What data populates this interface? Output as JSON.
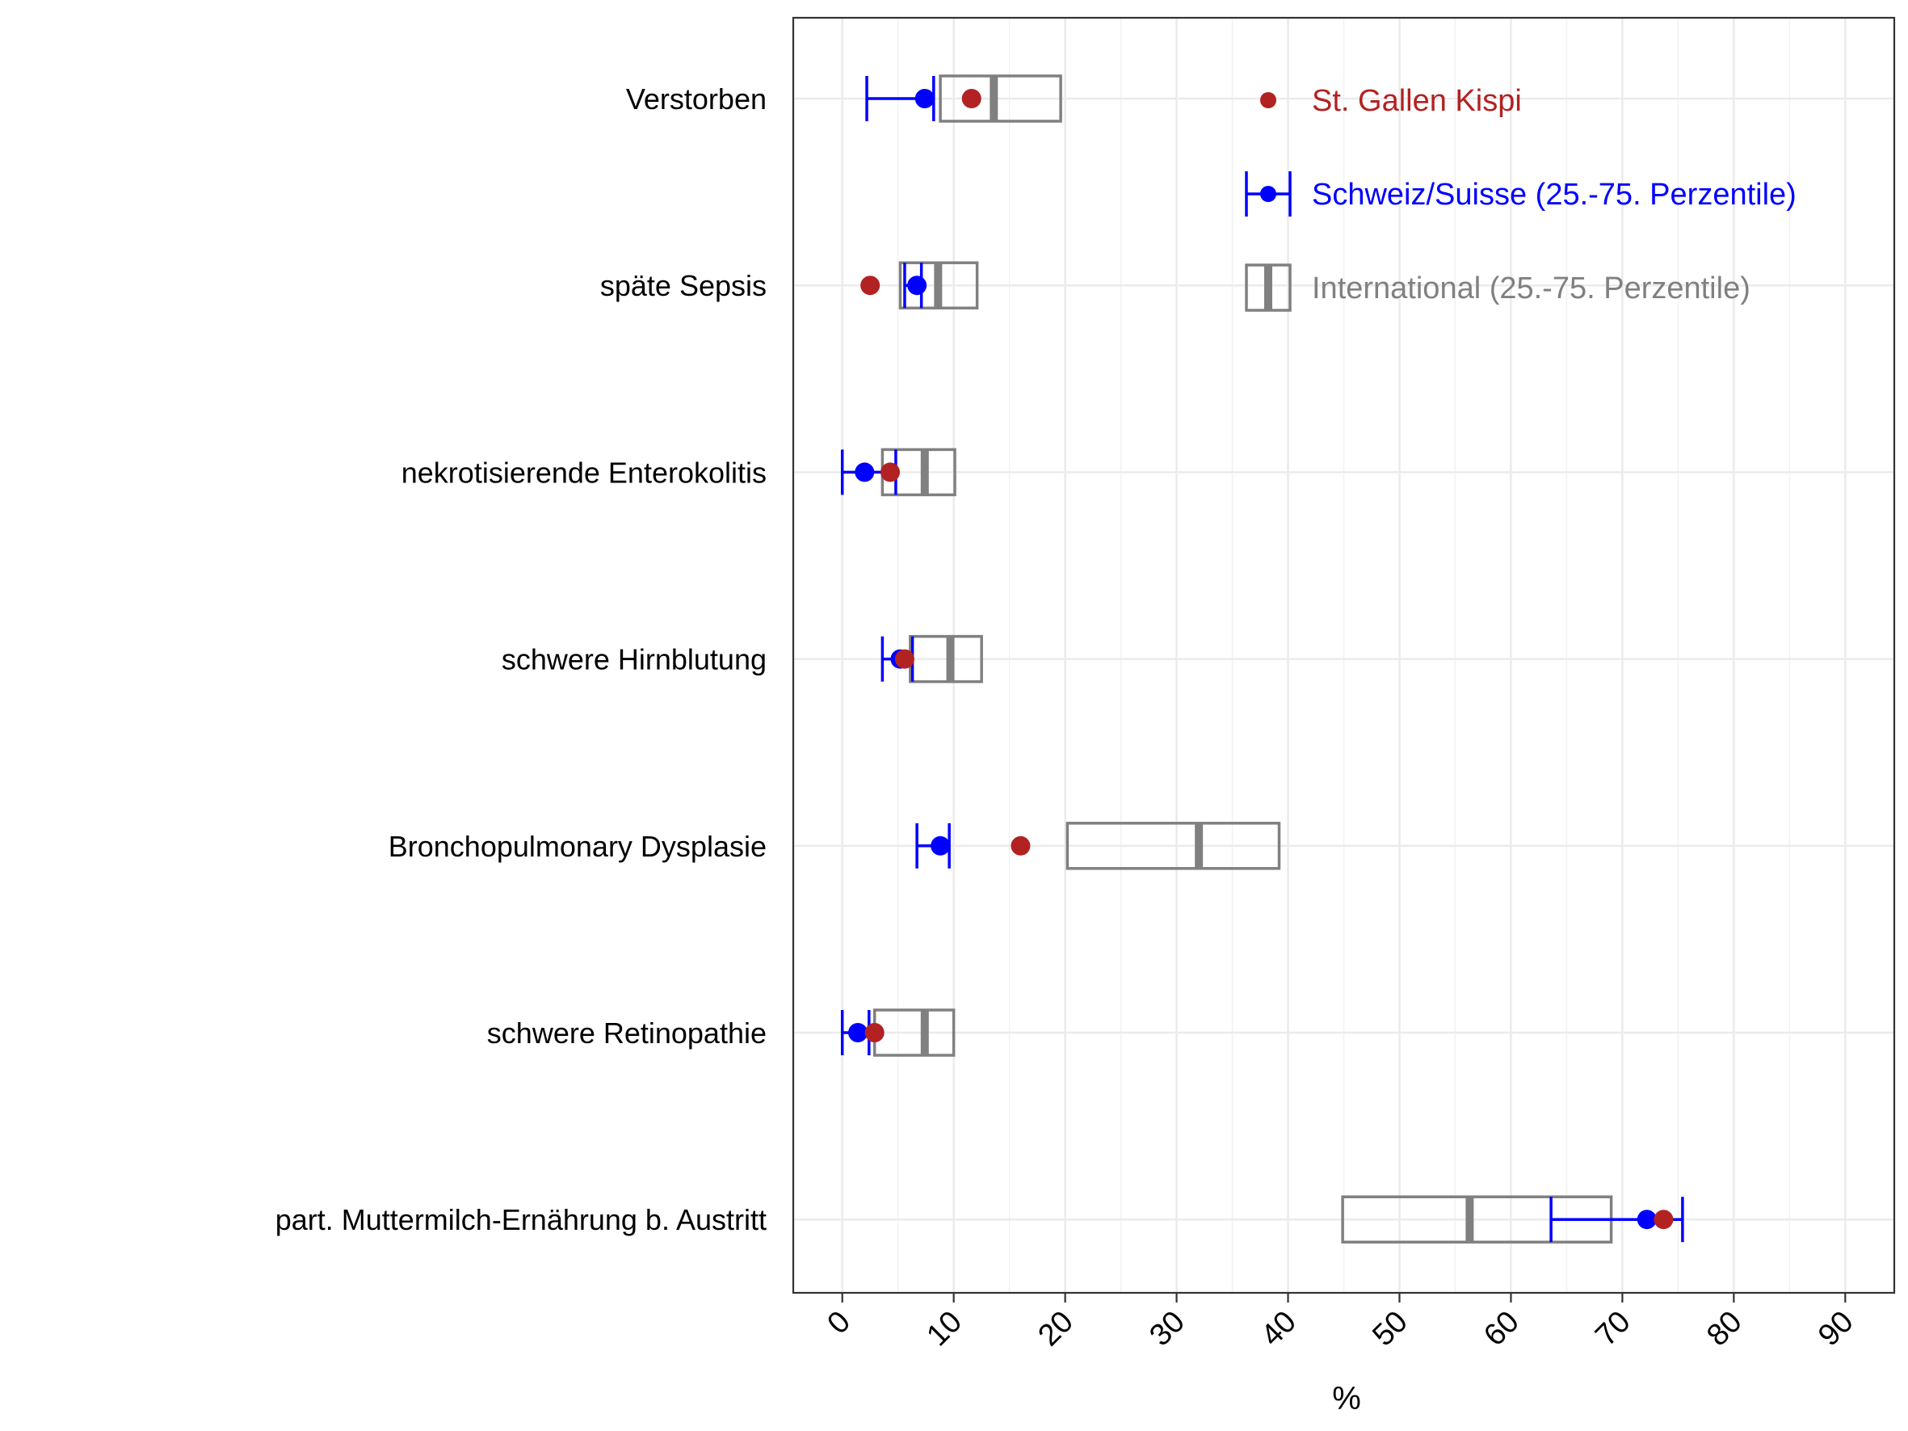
{
  "chart_data": {
    "type": "boxplot-dotplot",
    "xlabel": "%",
    "xlim": [
      -4.4,
      94.4
    ],
    "xticks": [
      0,
      10,
      20,
      30,
      40,
      50,
      60,
      70,
      80,
      90
    ],
    "grid": true,
    "legend_position": "top-right inside",
    "colors": {
      "local": "#b22222",
      "swiss": "#0000ff",
      "international": "#808080"
    },
    "legend": [
      {
        "key": "local",
        "label": "St. Gallen Kispi"
      },
      {
        "key": "swiss",
        "label": "Schweiz/Suisse (25.-75. Perzentile)"
      },
      {
        "key": "international",
        "label": "International (25.-75. Perzentile)"
      }
    ],
    "categories": [
      "Verstorben",
      "späte Sepsis",
      "nekrotisierende Enterokolitis",
      "schwere Hirnblutung",
      "Bronchopulmonary Dysplasie",
      "schwere Retinopathie",
      "part. Muttermilch-Ernährung b. Austritt"
    ],
    "international": [
      {
        "q1": 8.8,
        "median": 13.6,
        "q3": 19.6
      },
      {
        "q1": 5.2,
        "median": 8.6,
        "q3": 12.1
      },
      {
        "q1": 3.6,
        "median": 7.4,
        "q3": 10.1
      },
      {
        "q1": 6.1,
        "median": 9.7,
        "q3": 12.5
      },
      {
        "q1": 20.2,
        "median": 32.0,
        "q3": 39.2
      },
      {
        "q1": 2.9,
        "median": 7.4,
        "q3": 10.0
      },
      {
        "q1": 44.9,
        "median": 56.3,
        "q3": 69.0
      }
    ],
    "swiss": [
      {
        "p25": 2.2,
        "median": 7.4,
        "p75": 8.2
      },
      {
        "p25": 5.6,
        "median": 6.7,
        "p75": 7.1
      },
      {
        "p25": 0.0,
        "median": 2.0,
        "p75": 4.8
      },
      {
        "p25": 3.6,
        "median": 5.2,
        "p75": 6.3
      },
      {
        "p25": 6.7,
        "median": 8.8,
        "p75": 9.6
      },
      {
        "p25": 0.0,
        "median": 1.4,
        "p75": 2.4
      },
      {
        "p25": 63.6,
        "median": 72.2,
        "p75": 75.4
      }
    ],
    "local": [
      11.6,
      2.5,
      4.3,
      5.6,
      16.0,
      2.9,
      73.7
    ]
  }
}
